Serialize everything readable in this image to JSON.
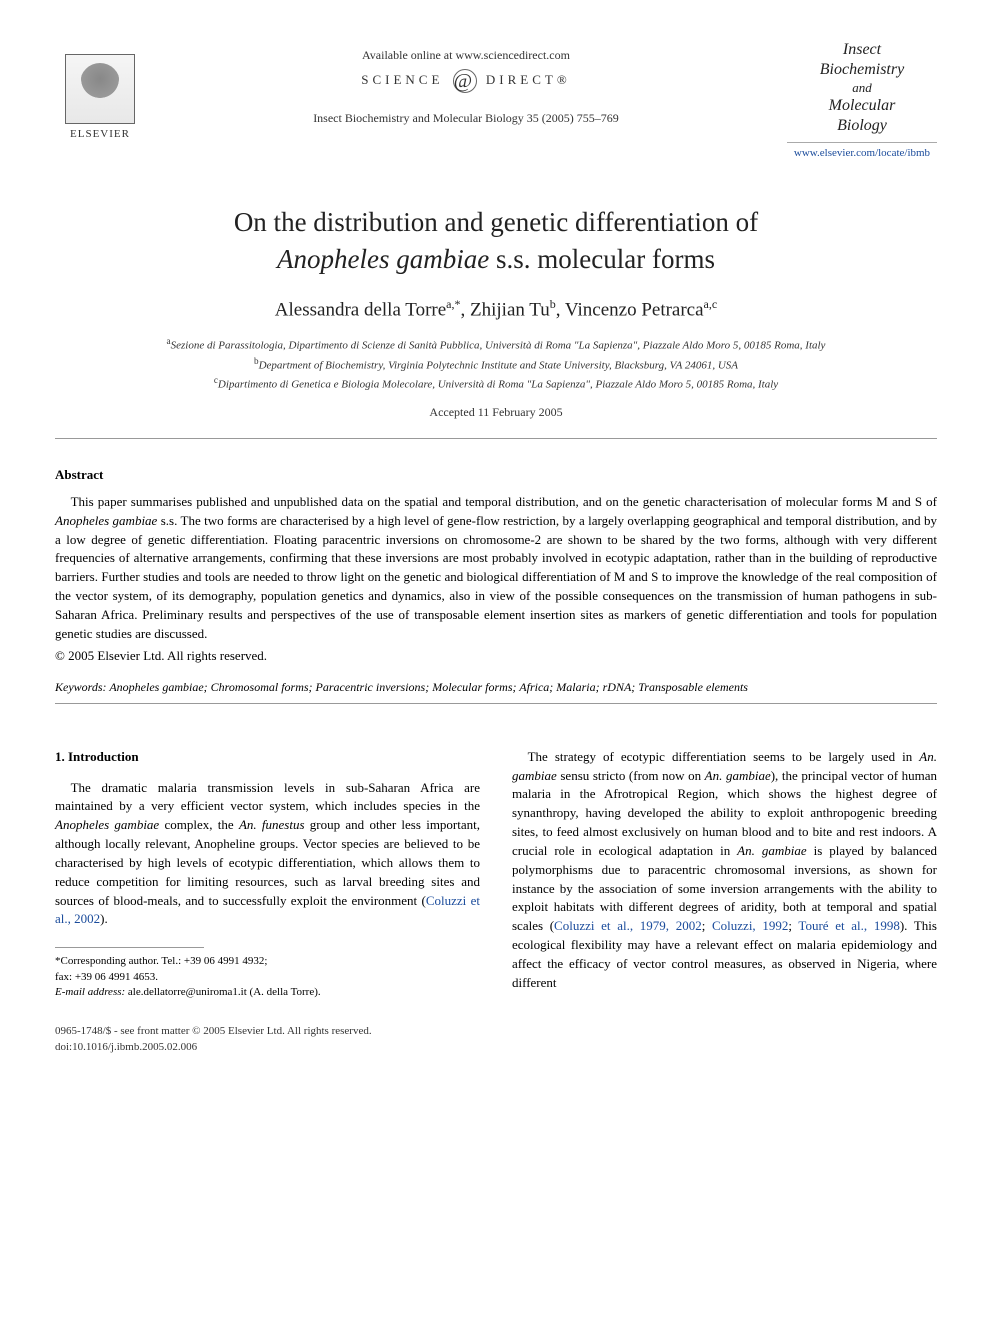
{
  "header": {
    "available_online": "Available online at www.sciencedirect.com",
    "science_direct_left": "SCIENCE",
    "science_direct_right": "DIRECT®",
    "citation": "Insect Biochemistry and Molecular Biology 35 (2005) 755–769",
    "elsevier": "ELSEVIER",
    "journal_title_line1": "Insect",
    "journal_title_line2": "Biochemistry",
    "journal_title_and": "and",
    "journal_title_line3": "Molecular",
    "journal_title_line4": "Biology",
    "journal_link": "www.elsevier.com/locate/ibmb"
  },
  "title": {
    "line1": "On the distribution and genetic differentiation of",
    "line2_species": "Anopheles gambiae",
    "line2_rest": " s.s. molecular forms"
  },
  "authors": {
    "a1_name": "Alessandra della Torre",
    "a1_sup": "a,*",
    "a2_name": "Zhijian Tu",
    "a2_sup": "b",
    "a3_name": "Vincenzo Petrarca",
    "a3_sup": "a,c"
  },
  "affiliations": {
    "a": "Sezione di Parassitologia, Dipartimento di Scienze di Sanità Pubblica, Università di Roma \"La Sapienza\", Piazzale Aldo Moro 5, 00185 Roma, Italy",
    "b": "Department of Biochemistry, Virginia Polytechnic Institute and State University, Blacksburg, VA 24061, USA",
    "c": "Dipartimento di Genetica e Biologia Molecolare, Università di Roma \"La Sapienza\", Piazzale Aldo Moro 5, 00185 Roma, Italy"
  },
  "accepted": "Accepted 11 February 2005",
  "abstract": {
    "heading": "Abstract",
    "body_pre": "This paper summarises published and unpublished data on the spatial and temporal distribution, and on the genetic characterisation of molecular forms M and S of ",
    "body_species": "Anopheles gambiae",
    "body_post": " s.s. The two forms are characterised by a high level of gene-flow restriction, by a largely overlapping geographical and temporal distribution, and by a low degree of genetic differentiation. Floating paracentric inversions on chromosome-2 are shown to be shared by the two forms, although with very different frequencies of alternative arrangements, confirming that these inversions are most probably involved in ecotypic adaptation, rather than in the building of reproductive barriers. Further studies and tools are needed to throw light on the genetic and biological differentiation of M and S to improve the knowledge of the real composition of the vector system, of its demography, population genetics and dynamics, also in view of the possible consequences on the transmission of human pathogens in sub-Saharan Africa. Preliminary results and perspectives of the use of transposable element insertion sites as markers of genetic differentiation and tools for population genetic studies are discussed.",
    "copyright": "© 2005 Elsevier Ltd. All rights reserved."
  },
  "keywords": {
    "label": "Keywords: ",
    "species": "Anopheles gambiae",
    "rest": "; Chromosomal forms; Paracentric inversions; Molecular forms; Africa; Malaria; rDNA; Transposable elements"
  },
  "intro": {
    "heading": "1. Introduction",
    "col1_p1_pre": "The dramatic malaria transmission levels in sub-Saharan Africa are maintained by a very efficient vector system, which includes species in the ",
    "col1_p1_sp1": "Anopheles gambiae",
    "col1_p1_mid1": " complex, the ",
    "col1_p1_sp2": "An. funestus",
    "col1_p1_mid2": " group and other less important, although locally relevant, Anopheline groups. Vector species are believed to be characterised by high levels of ecotypic differentiation, which allows them to reduce competition for limiting resources, such as larval breeding sites and sources of blood-meals, and to successfully exploit the environment (",
    "col1_p1_cite": "Coluzzi et al., 2002",
    "col1_p1_end": ").",
    "col2_p1_pre": "The strategy of ecotypic differentiation seems to be largely used in ",
    "col2_p1_sp1": "An. gambiae",
    "col2_p1_mid1": " sensu stricto (from now on ",
    "col2_p1_sp2": "An. gambiae",
    "col2_p1_mid2": "), the principal vector of human malaria in the Afrotropical Region, which shows the highest degree of synanthropy, having developed the ability to exploit anthropogenic breeding sites, to feed almost exclusively on human blood and to bite and rest indoors. A crucial role in ecological adaptation in ",
    "col2_p1_sp3": "An. gambiae",
    "col2_p1_mid3": " is played by balanced polymorphisms due to paracentric chromosomal inversions, as shown for instance by the association of some inversion arrangements with the ability to exploit habitats with different degrees of aridity, both at temporal and spatial scales (",
    "col2_p1_cite1": "Coluzzi et al., 1979, 2002",
    "col2_p1_sep1": "; ",
    "col2_p1_cite2": "Coluzzi, 1992",
    "col2_p1_sep2": "; ",
    "col2_p1_cite3": "Touré et al., 1998",
    "col2_p1_mid4": "). This ecological flexibility may have a relevant effect on malaria epidemiology and affect the efficacy of vector control measures, as observed in Nigeria, where different"
  },
  "footnote": {
    "corr_label": "*Corresponding author. Tel.: +39 06 4991 4932;",
    "fax": "fax: +39 06 4991 4653.",
    "email_label": "E-mail address:",
    "email": " ale.dellatorre@uniroma1.it (A. della Torre)."
  },
  "footer": {
    "issn": "0965-1748/$ - see front matter © 2005 Elsevier Ltd. All rights reserved.",
    "doi": "doi:10.1016/j.ibmb.2005.02.006"
  }
}
